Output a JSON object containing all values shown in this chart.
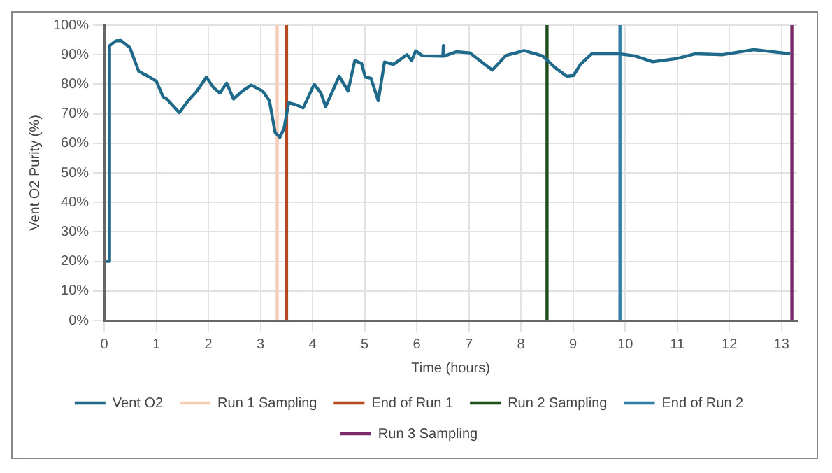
{
  "chart_data": {
    "type": "line",
    "xlabel": "Time (hours)",
    "ylabel": "Vent O2 Purity (%)",
    "xlim": [
      0,
      13.3
    ],
    "xticks": [
      0,
      1,
      2,
      3,
      4,
      5,
      6,
      7,
      8,
      9,
      10,
      11,
      12,
      13
    ],
    "ylim": [
      0,
      100
    ],
    "yticks": [
      {
        "value": 0,
        "label": "0%"
      },
      {
        "value": 10,
        "label": "10%"
      },
      {
        "value": 20,
        "label": "20%"
      },
      {
        "value": 30,
        "label": "30%"
      },
      {
        "value": 40,
        "label": "40%"
      },
      {
        "value": 50,
        "label": "50%"
      },
      {
        "value": 60,
        "label": "60%"
      },
      {
        "value": 70,
        "label": "70%"
      },
      {
        "value": 80,
        "label": "80%"
      },
      {
        "value": 90,
        "label": "90%"
      },
      {
        "value": 100,
        "label": "100%"
      }
    ],
    "grid": true,
    "legend": "bottom",
    "marker": "none",
    "line_style": "solid",
    "series": [
      {
        "name": "Vent O2",
        "color": "#1f6a8a",
        "x": [
          0.03,
          0.1,
          0.1,
          0.22,
          0.32,
          0.49,
          0.66,
          0.87,
          1.0,
          1.13,
          1.2,
          1.44,
          1.61,
          1.78,
          1.96,
          2.09,
          2.22,
          2.35,
          2.48,
          2.65,
          2.82,
          3.04,
          3.17,
          3.28,
          3.37,
          3.45,
          3.54,
          3.69,
          3.82,
          4.03,
          4.16,
          4.25,
          4.51,
          4.68,
          4.81,
          4.94,
          5.01,
          5.12,
          5.26,
          5.38,
          5.55,
          5.81,
          5.9,
          5.98,
          6.11,
          6.5,
          6.51,
          6.52,
          6.76,
          7.02,
          7.45,
          7.71,
          8.06,
          8.41,
          8.67,
          8.88,
          9.01,
          9.14,
          9.36,
          9.88,
          10.18,
          10.53,
          11.0,
          11.35,
          11.87,
          12.47,
          13.17
        ],
        "values": [
          20,
          20,
          93,
          94.7,
          94.8,
          92.4,
          84.4,
          82.4,
          81,
          75.7,
          75,
          70.4,
          74.4,
          77.7,
          82.4,
          79,
          77,
          80.4,
          75,
          77.7,
          79.7,
          77.7,
          74.4,
          63.7,
          62,
          65,
          73.7,
          73,
          72,
          80,
          77,
          72.4,
          82.7,
          77.7,
          88,
          87,
          82.4,
          82,
          74.4,
          87.5,
          86.7,
          90,
          88,
          91.3,
          89.6,
          89.5,
          93,
          89.5,
          91,
          90.6,
          84.8,
          89.7,
          91.4,
          89.6,
          85.4,
          82.7,
          83,
          86.7,
          90.3,
          90.3,
          89.6,
          87.6,
          88.7,
          90.3,
          90,
          91.7,
          90.3
        ]
      },
      {
        "name": "Run 1 Sampling",
        "color": "#f6cdb8",
        "x": [
          3.32,
          3.32
        ],
        "values": [
          0,
          100
        ]
      },
      {
        "name": "End of Run 1",
        "color": "#b5481f",
        "x": [
          3.5,
          3.5
        ],
        "values": [
          0,
          100
        ]
      },
      {
        "name": "Run 2 Sampling",
        "color": "#1e4d1e",
        "x": [
          8.5,
          8.5
        ],
        "values": [
          0,
          100
        ]
      },
      {
        "name": "End of Run 2",
        "color": "#2e7ea6",
        "x": [
          9.9,
          9.9
        ],
        "values": [
          0,
          100
        ]
      },
      {
        "name": "Run 3 Sampling",
        "color": "#7a2a6a",
        "x": [
          13.2,
          13.2
        ],
        "values": [
          0,
          100
        ]
      }
    ]
  }
}
